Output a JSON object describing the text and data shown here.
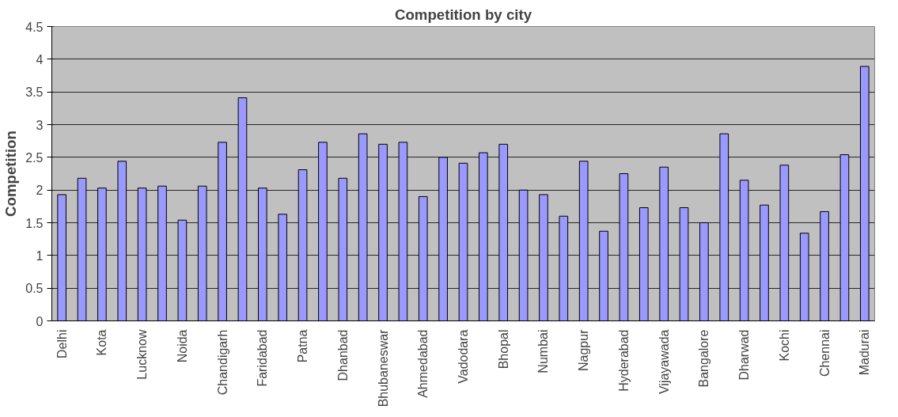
{
  "chart_data": {
    "type": "bar",
    "title": "Competition by city",
    "ylabel": "Competition",
    "categories": [
      "Delhi",
      null,
      "Kota",
      null,
      "Lucknow",
      null,
      "Noida",
      null,
      "Chandigarh",
      null,
      "Faridabad",
      null,
      "Patna",
      null,
      "Dhanbad",
      null,
      "Bhubaneswar",
      null,
      "Ahmedabad",
      null,
      "Vadodara",
      null,
      "Bhopal",
      null,
      "Numbai",
      null,
      "Nagpur",
      null,
      "Hyderabad",
      null,
      "Vijayawada",
      null,
      "Bangalore",
      null,
      "Dharwad",
      null,
      "Kochi",
      null,
      "Chennai",
      null,
      "Madurai"
    ],
    "values": [
      1.93,
      2.18,
      2.03,
      2.44,
      2.03,
      2.06,
      1.54,
      2.06,
      2.73,
      3.41,
      2.03,
      1.63,
      2.31,
      2.73,
      2.18,
      2.86,
      2.7,
      2.73,
      1.9,
      2.5,
      2.41,
      2.57,
      2.7,
      2.0,
      1.93,
      1.6,
      2.44,
      1.37,
      2.25,
      1.73,
      2.35,
      1.73,
      1.5,
      2.86,
      2.15,
      1.77,
      2.38,
      1.34,
      1.67,
      2.54,
      3.89
    ],
    "color": "#9999ff",
    "ylim": [
      0,
      4.5
    ],
    "yticks": [
      0,
      0.5,
      1,
      1.5,
      2,
      2.5,
      3,
      3.5,
      4,
      4.5
    ],
    "grid": "y"
  }
}
